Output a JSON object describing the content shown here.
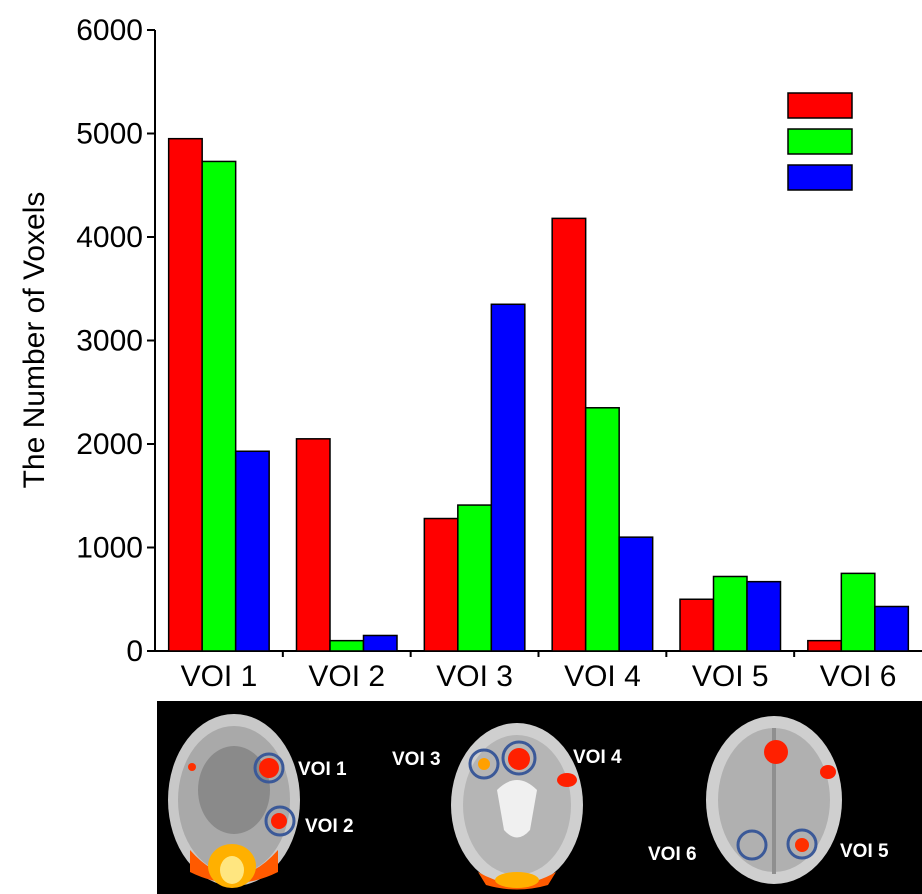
{
  "chart_data": {
    "type": "bar",
    "categories": [
      "VOI 1",
      "VOI 2",
      "VOI 3",
      "VOI 4",
      "VOI 5",
      "VOI 6"
    ],
    "series": [
      {
        "color": "#ff0000",
        "values": [
          4950,
          2050,
          1280,
          4180,
          500,
          100
        ]
      },
      {
        "color": "#00ff00",
        "values": [
          4730,
          100,
          1410,
          2350,
          720,
          750
        ]
      },
      {
        "color": "#0000ff",
        "values": [
          1930,
          150,
          3350,
          1100,
          670,
          430
        ]
      }
    ],
    "title": "",
    "xlabel": "",
    "ylabel": "The Number of Voxels",
    "ylim": [
      0,
      6000
    ],
    "yticks": [
      0,
      1000,
      2000,
      3000,
      4000,
      5000,
      6000
    ],
    "grid": false,
    "legend_position": "top-right"
  },
  "brain_panel": {
    "labels": [
      "VOI 1",
      "VOI 2",
      "VOI 3",
      "VOI 4",
      "VOI 6",
      "VOI 5"
    ]
  }
}
